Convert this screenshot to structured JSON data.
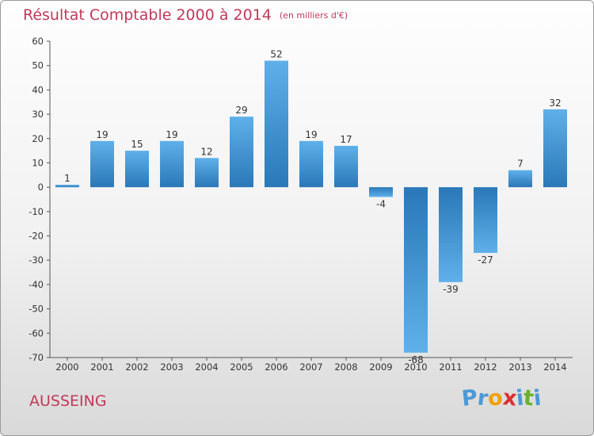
{
  "chart_data": {
    "type": "bar",
    "title": "Résultat Comptable 2000 à 2014",
    "subtitle": "(en milliers d'€)",
    "categories": [
      "2000",
      "2001",
      "2002",
      "2003",
      "2004",
      "2005",
      "2006",
      "2007",
      "2008",
      "2009",
      "2010",
      "2011",
      "2012",
      "2013",
      "2014"
    ],
    "values": [
      1,
      19,
      15,
      19,
      12,
      29,
      52,
      19,
      17,
      -4,
      -68,
      -39,
      -27,
      7,
      32
    ],
    "ylim": [
      -70,
      60
    ],
    "yticks": [
      60,
      50,
      40,
      30,
      20,
      10,
      0,
      -10,
      -20,
      -30,
      -40,
      -50,
      -60,
      -70
    ],
    "xlabel": "",
    "ylabel": "",
    "grid": false,
    "bar_color": "#3d8fd0"
  },
  "footer": {
    "town": "AUSSEING",
    "logo_letters": [
      "P",
      "r",
      "o",
      "x",
      "i",
      "t",
      "i"
    ]
  },
  "colors": {
    "title": "#c0395a",
    "logo": [
      "#4a9ad6",
      "#4a9ad6",
      "#f0a000",
      "#d93030",
      "#4a9ad6",
      "#6ab030",
      "#4a9ad6"
    ]
  }
}
